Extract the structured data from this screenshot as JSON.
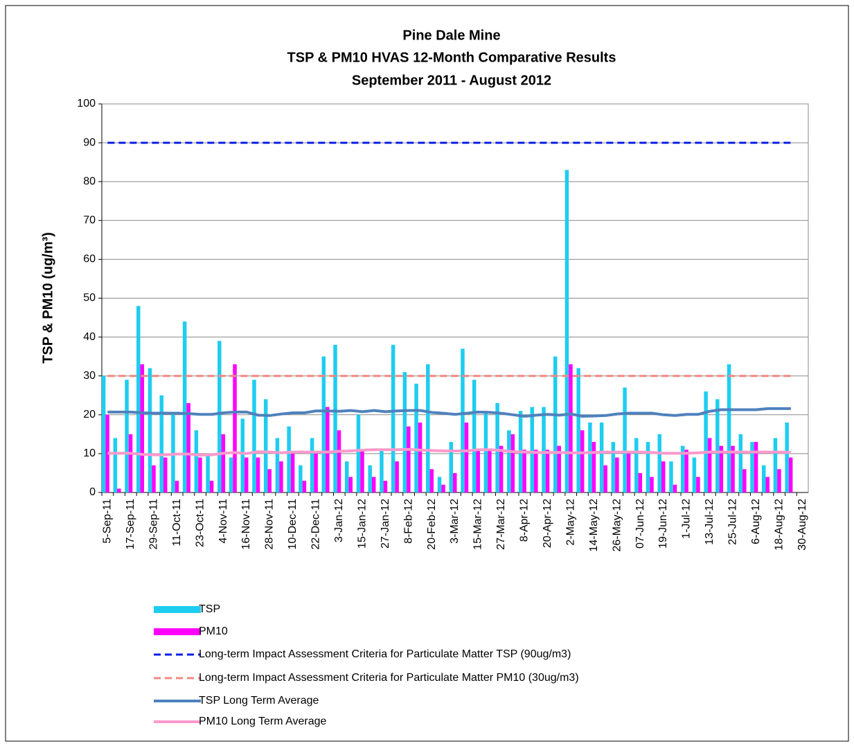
{
  "chart_data": {
    "type": "bar",
    "title": [
      "Pine Dale Mine",
      "TSP & PM10 HVAS 12-Month Comparative Results",
      "September 2011 - August 2012"
    ],
    "y_label": "TSP & PM10 (ug/m³)",
    "categories": [
      "5-Sep-11",
      null,
      "17-Sep-11",
      null,
      "29-Sep-11",
      null,
      "11-Oct-11",
      null,
      "23-Oct-11",
      null,
      "4-Nov-11",
      null,
      "16-Nov-11",
      null,
      "28-Nov-11",
      null,
      "10-Dec-11",
      null,
      "22-Dec-11",
      null,
      "3-Jan-12",
      null,
      "15-Jan-12",
      null,
      "27-Jan-12",
      null,
      "8-Feb-12",
      null,
      "20-Feb-12",
      null,
      "3-Mar-12",
      null,
      "15-Mar-12",
      null,
      "27-Mar-12",
      null,
      "8-Apr-12",
      null,
      "20-Apr-12",
      null,
      "2-May-12",
      null,
      "14-May-12",
      null,
      "26-May-12",
      null,
      "07-Jun-12",
      null,
      "19-Jun-12",
      null,
      "1-Jul-12",
      null,
      "13-Jul-12",
      null,
      "25-Jul-12",
      null,
      "6-Aug-12",
      null,
      "18-Aug-12",
      null,
      "30-Aug-12"
    ],
    "ylim": [
      0,
      100
    ],
    "yticks": [
      0,
      10,
      20,
      30,
      40,
      50,
      60,
      70,
      80,
      90,
      100
    ],
    "grid": true,
    "series": [
      {
        "name": "TSP",
        "kind": "bar",
        "color": "#1ecdf0",
        "values": [
          30,
          14,
          29,
          48,
          32,
          25,
          20,
          44,
          16,
          10,
          39,
          9,
          19,
          29,
          24,
          14,
          17,
          7,
          14,
          35,
          38,
          8,
          20,
          7,
          11,
          38,
          31,
          28,
          33,
          4,
          13,
          37,
          29,
          21,
          23,
          16,
          21,
          22,
          22,
          35,
          83,
          32,
          18,
          18,
          13,
          27,
          14,
          13,
          15,
          8,
          12,
          9,
          26,
          24,
          33,
          15,
          13,
          7,
          14,
          18,
          null
        ]
      },
      {
        "name": "PM10",
        "kind": "bar",
        "color": "#ff00ff",
        "values": [
          20,
          1,
          15,
          33,
          7,
          9,
          3,
          23,
          9,
          3,
          15,
          33,
          9,
          9,
          6,
          8,
          10,
          3,
          10,
          22,
          16,
          4,
          11,
          4,
          3,
          8,
          17,
          18,
          6,
          2,
          5,
          18,
          11,
          11,
          12,
          15,
          11,
          11,
          11,
          12,
          33,
          16,
          13,
          7,
          9,
          10,
          5,
          4,
          8,
          2,
          11,
          4,
          14,
          12,
          12,
          6,
          13,
          4,
          6,
          9,
          null
        ]
      },
      {
        "name": "Long-term Impact Assessment Criteria for Particulate Matter TSP (90ug/m3)",
        "kind": "line",
        "dash": true,
        "color": "#0a1ee6",
        "values": [
          90,
          90,
          90,
          90,
          90,
          90,
          90,
          90,
          90,
          90,
          90,
          90,
          90,
          90,
          90,
          90,
          90,
          90,
          90,
          90,
          90,
          90,
          90,
          90,
          90,
          90,
          90,
          90,
          90,
          90,
          90,
          90,
          90,
          90,
          90,
          90,
          90,
          90,
          90,
          90,
          90,
          90,
          90,
          90,
          90,
          90,
          90,
          90,
          90,
          90,
          90,
          90,
          90,
          90,
          90,
          90,
          90,
          90,
          90,
          90,
          null
        ]
      },
      {
        "name": "Long-term Impact Assessment Criteria for Particulate Matter PM10 (30ug/m3)",
        "kind": "line",
        "dash": true,
        "color": "#f4877f",
        "values": [
          30,
          30,
          30,
          30,
          30,
          30,
          30,
          30,
          30,
          30,
          30,
          30,
          30,
          30,
          30,
          30,
          30,
          30,
          30,
          30,
          30,
          30,
          30,
          30,
          30,
          30,
          30,
          30,
          30,
          30,
          30,
          30,
          30,
          30,
          30,
          30,
          30,
          30,
          30,
          30,
          30,
          30,
          30,
          30,
          30,
          30,
          30,
          30,
          30,
          30,
          30,
          30,
          30,
          30,
          30,
          30,
          30,
          30,
          30,
          30,
          null
        ]
      },
      {
        "name": "TSP Long Term  Average",
        "kind": "line",
        "dash": false,
        "color": "#4f81bd",
        "values": [
          20.7,
          20.7,
          20.7,
          20.5,
          20.4,
          20.4,
          20.4,
          20.3,
          20.1,
          20.1,
          20.5,
          20.7,
          20.7,
          19.9,
          19.8,
          20.2,
          20.5,
          20.5,
          21.0,
          21.0,
          20.9,
          21.1,
          20.8,
          21.1,
          20.8,
          21.0,
          21.1,
          21.1,
          20.6,
          20.4,
          20.1,
          20.4,
          20.7,
          20.6,
          20.4,
          20.0,
          19.6,
          19.9,
          20.1,
          19.9,
          20.2,
          19.6,
          19.7,
          19.8,
          20.2,
          20.4,
          20.4,
          20.4,
          20.0,
          19.8,
          20.1,
          20.1,
          20.9,
          21.3,
          21.3,
          21.3,
          21.3,
          21.6,
          21.6,
          21.6,
          null
        ]
      },
      {
        "name": "PM10 Long Term  Average",
        "kind": "line",
        "dash": false,
        "color": "#ff99cc",
        "values": [
          10.1,
          10.1,
          10.1,
          9.8,
          9.7,
          9.7,
          9.9,
          9.9,
          9.6,
          9.7,
          10.1,
          10.3,
          10.0,
          10.5,
          10.4,
          10.2,
          10.4,
          10.4,
          10.4,
          10.4,
          10.6,
          10.7,
          10.9,
          11.0,
          11.0,
          11.0,
          11.1,
          10.9,
          10.8,
          10.7,
          10.7,
          10.7,
          11.0,
          11.0,
          10.8,
          10.5,
          10.4,
          10.3,
          10.3,
          10.3,
          10.2,
          10.2,
          10.3,
          10.4,
          10.4,
          10.4,
          10.4,
          10.3,
          10.1,
          10.1,
          10.1,
          10.2,
          10.4,
          10.4,
          10.4,
          10.4,
          10.4,
          10.4,
          10.4,
          10.3,
          null
        ]
      }
    ]
  }
}
